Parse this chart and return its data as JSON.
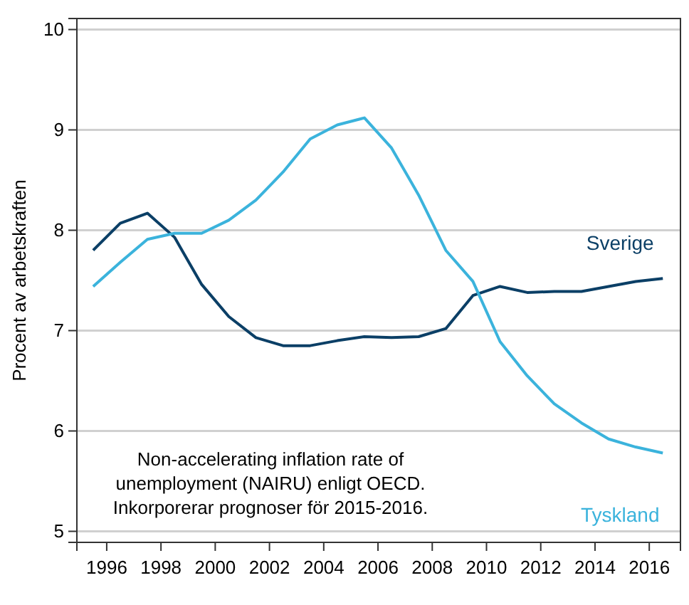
{
  "chart_data": {
    "type": "line",
    "ylabel": "Procent av arbetskraften",
    "x": [
      1995.5,
      1996.5,
      1997.5,
      1998.5,
      1999.5,
      2000.5,
      2001.5,
      2002.5,
      2003.5,
      2004.5,
      2005.5,
      2006.5,
      2007.5,
      2008.5,
      2009.5,
      2010.5,
      2011.5,
      2012.5,
      2013.5,
      2014.5,
      2015.5,
      2016.5
    ],
    "series": [
      {
        "name": "Sverige",
        "color": "#0b3f66",
        "values": [
          7.8,
          8.07,
          8.17,
          7.93,
          7.46,
          7.14,
          6.93,
          6.85,
          6.85,
          6.9,
          6.94,
          6.93,
          6.94,
          7.02,
          7.35,
          7.44,
          7.38,
          7.39,
          7.39,
          7.44,
          7.49,
          7.52
        ]
      },
      {
        "name": "Tyskland",
        "color": "#3bb3dc",
        "values": [
          7.44,
          7.68,
          7.91,
          7.97,
          7.97,
          8.1,
          8.3,
          8.58,
          8.91,
          9.05,
          9.12,
          8.82,
          8.35,
          7.8,
          7.49,
          6.89,
          6.55,
          6.27,
          6.08,
          5.92,
          5.84,
          5.78
        ]
      }
    ],
    "xlim": [
      1994.9,
      2017.15
    ],
    "xticks": [
      1996,
      1998,
      2000,
      2002,
      2004,
      2006,
      2008,
      2010,
      2012,
      2014,
      2016
    ],
    "ylim": [
      4.89,
      10.11
    ],
    "yticks": [
      5,
      6,
      7,
      8,
      9,
      10
    ],
    "grid": "y",
    "legend": false,
    "marker": "none",
    "line_style": "solid",
    "annotations": [
      "Non-accelerating inflation rate of unemployment (NAIRU) enligt OECD. Inkorporerar prognoser för 2015-2016."
    ]
  }
}
